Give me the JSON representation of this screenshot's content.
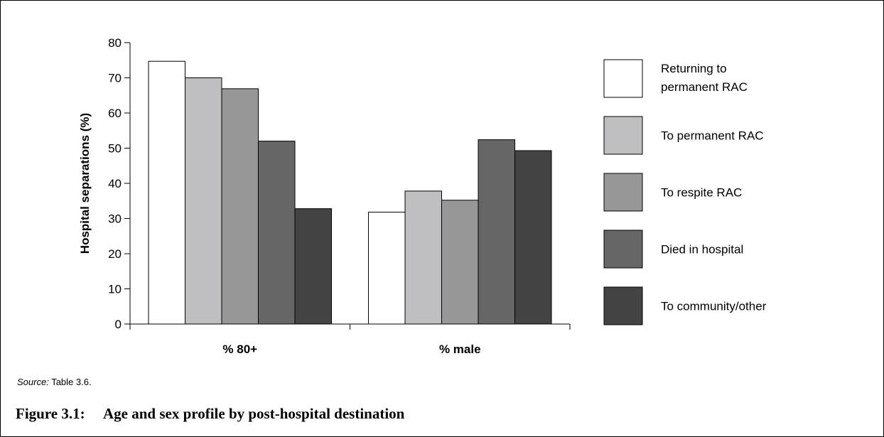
{
  "chart_data": {
    "type": "bar",
    "categories": [
      "% 80+",
      "% male"
    ],
    "ylabel": "Hospital separations (%)",
    "xlabel": "",
    "ylim": [
      0,
      80
    ],
    "yticks": [
      0,
      10,
      20,
      30,
      40,
      50,
      60,
      70,
      80
    ],
    "grid": false,
    "legend_position": "right",
    "series": [
      {
        "name": "Returning to permanent RAC",
        "values": [
          74.7,
          31.8
        ],
        "color": "#ffffff"
      },
      {
        "name": "To permanent RAC",
        "values": [
          70.0,
          37.8
        ],
        "color": "#bfbfc1"
      },
      {
        "name": "To respite RAC",
        "values": [
          66.9,
          35.2
        ],
        "color": "#979797"
      },
      {
        "name": "Died in hospital",
        "values": [
          52.0,
          52.4
        ],
        "color": "#676667"
      },
      {
        "name": "To community/other",
        "values": [
          32.8,
          49.3
        ],
        "color": "#434343"
      }
    ]
  },
  "source": {
    "label": "Source:",
    "text": "Table 3.6."
  },
  "caption": {
    "number": "Figure 3.1:",
    "title": "Age and sex profile by post-hospital destination"
  }
}
